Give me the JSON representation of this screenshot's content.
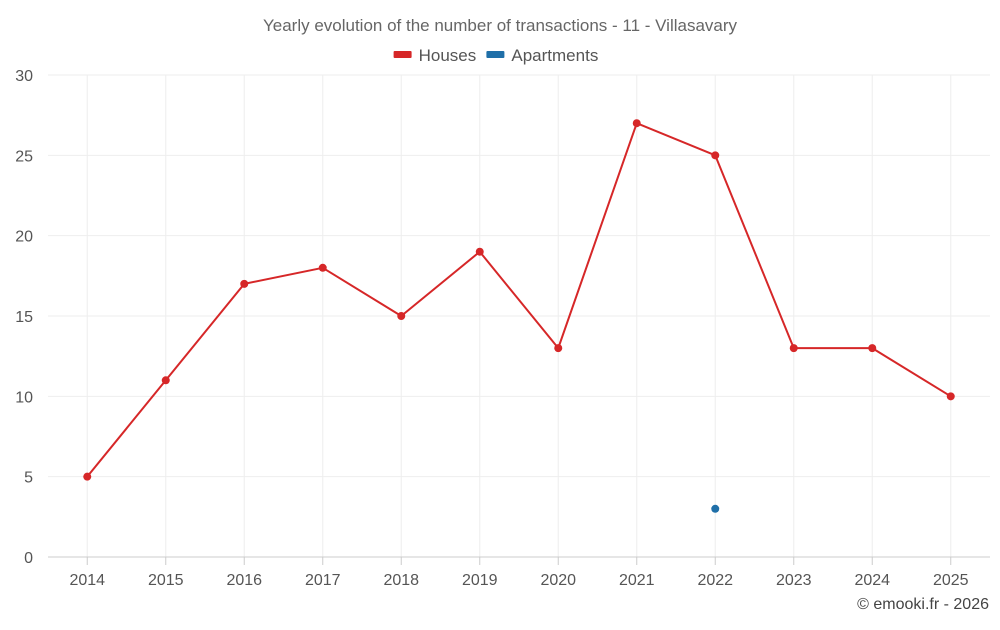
{
  "chart_data": {
    "type": "line",
    "title": "Yearly evolution of the number of transactions - 11 - Villasavary",
    "categories": [
      "2014",
      "2015",
      "2016",
      "2017",
      "2018",
      "2019",
      "2020",
      "2021",
      "2022",
      "2023",
      "2024",
      "2025"
    ],
    "series": [
      {
        "name": "Houses",
        "color": "#d62728",
        "values": [
          5,
          11,
          17,
          18,
          15,
          19,
          13,
          27,
          25,
          13,
          13,
          10
        ]
      },
      {
        "name": "Apartments",
        "color": "#1f6fa8",
        "values": [
          null,
          null,
          null,
          null,
          null,
          null,
          null,
          null,
          3,
          null,
          null,
          null
        ]
      }
    ],
    "ylim": [
      0,
      30
    ],
    "yticks": [
      0,
      5,
      10,
      15,
      20,
      25,
      30
    ],
    "grid": true,
    "legend": "top-center"
  },
  "credit": "© emooki.fr - 2026"
}
